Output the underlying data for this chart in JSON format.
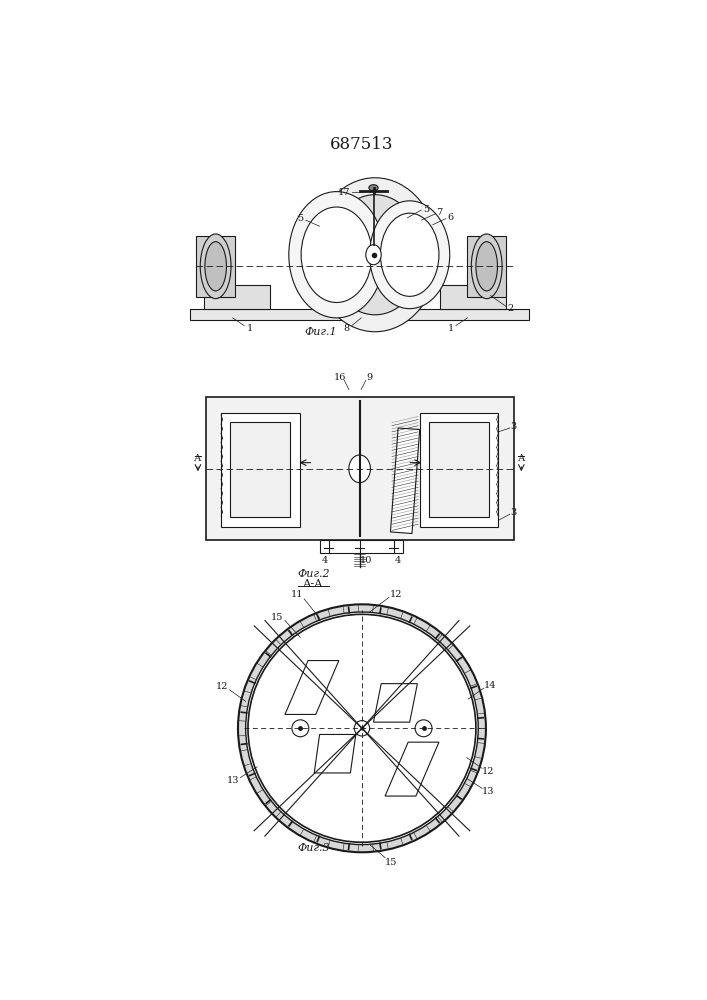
{
  "title": "687513",
  "title_fontsize": 11,
  "fig1_label": "Фиг.1",
  "fig2_label": "Фиг.2",
  "fig2_sublabel": "А-А",
  "fig3_label": "Фиг.3",
  "bg_color": "#ffffff",
  "line_color": "#1a1a1a",
  "line_width": 0.8
}
